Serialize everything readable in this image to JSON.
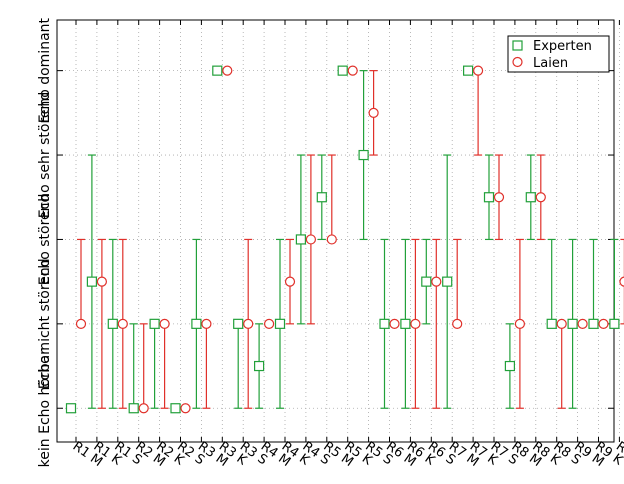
{
  "chart_data": {
    "type": "scatter",
    "categories": [
      "R1 M",
      "R1 K",
      "R1 S",
      "R2 M",
      "R2 K",
      "R2 S",
      "R3 M",
      "R3 K",
      "R3 S",
      "R4 M",
      "R4 K",
      "R4 S",
      "R5 M",
      "R5 K",
      "R5 S",
      "R6 M",
      "R6 K",
      "R6 S",
      "R7 M",
      "R7 K",
      "R7 S",
      "R8 M",
      "R8 K",
      "R8 S",
      "R9 M",
      "R9 K",
      "R9 S"
    ],
    "y_tick_labels": [
      "kein Echo hörbar",
      "Echo nicht störend",
      "Echo störend",
      "Echo sehr störend",
      "Echo dominant"
    ],
    "ylim": [
      0.6,
      5.6
    ],
    "grid": true,
    "legend_position": "top-right",
    "series": [
      {
        "name": "Experten",
        "marker": "square",
        "color": "#22a03a",
        "points": [
          {
            "y": 1.0,
            "low": null,
            "high": null
          },
          {
            "y": 2.5,
            "low": 1.0,
            "high": 4.0
          },
          {
            "y": 2.0,
            "low": 1.0,
            "high": 3.0
          },
          {
            "y": 1.0,
            "low": 1.0,
            "high": 2.0
          },
          {
            "y": 2.0,
            "low": 1.0,
            "high": 2.0
          },
          {
            "y": 1.0,
            "low": 1.0,
            "high": 1.0
          },
          {
            "y": 2.0,
            "low": 1.0,
            "high": 3.0
          },
          {
            "y": 5.0,
            "low": null,
            "high": null
          },
          {
            "y": 2.0,
            "low": 1.0,
            "high": 2.0
          },
          {
            "y": 1.5,
            "low": 1.0,
            "high": 2.0
          },
          {
            "y": 2.0,
            "low": 1.0,
            "high": 3.0
          },
          {
            "y": 3.0,
            "low": 2.0,
            "high": 4.0
          },
          {
            "y": 3.5,
            "low": 3.0,
            "high": 4.0
          },
          {
            "y": 5.0,
            "low": null,
            "high": null
          },
          {
            "y": 4.0,
            "low": 3.0,
            "high": 5.0
          },
          {
            "y": 2.0,
            "low": 1.0,
            "high": 3.0
          },
          {
            "y": 2.0,
            "low": 1.0,
            "high": 3.0
          },
          {
            "y": 2.5,
            "low": 2.0,
            "high": 3.0
          },
          {
            "y": 2.5,
            "low": 1.0,
            "high": 4.0
          },
          {
            "y": 5.0,
            "low": null,
            "high": null
          },
          {
            "y": 3.5,
            "low": 3.0,
            "high": 4.0
          },
          {
            "y": 1.5,
            "low": 1.0,
            "high": 2.0
          },
          {
            "y": 3.5,
            "low": 3.0,
            "high": 4.0
          },
          {
            "y": 2.0,
            "low": 2.0,
            "high": 3.0
          },
          {
            "y": 2.0,
            "low": 1.0,
            "high": 3.0
          },
          {
            "y": 2.0,
            "low": 2.0,
            "high": 3.0
          },
          {
            "y": 2.0,
            "low": 2.0,
            "high": 3.0
          }
        ]
      },
      {
        "name": "Laien",
        "marker": "circle",
        "color": "#e0302a",
        "points": [
          {
            "y": 2.0,
            "low": 2.0,
            "high": 3.0
          },
          {
            "y": 2.5,
            "low": 1.0,
            "high": 3.0
          },
          {
            "y": 2.0,
            "low": 1.0,
            "high": 3.0
          },
          {
            "y": 1.0,
            "low": 1.0,
            "high": 2.0
          },
          {
            "y": 2.0,
            "low": 1.0,
            "high": 2.0
          },
          {
            "y": 1.0,
            "low": 1.0,
            "high": 1.0
          },
          {
            "y": 2.0,
            "low": 1.0,
            "high": 2.0
          },
          {
            "y": 5.0,
            "low": null,
            "high": null
          },
          {
            "y": 2.0,
            "low": 1.0,
            "high": 3.0
          },
          {
            "y": 2.0,
            "low": 2.0,
            "high": 2.0
          },
          {
            "y": 2.5,
            "low": 2.0,
            "high": 3.0
          },
          {
            "y": 3.0,
            "low": 2.0,
            "high": 4.0
          },
          {
            "y": 3.0,
            "low": 3.0,
            "high": 4.0
          },
          {
            "y": 5.0,
            "low": null,
            "high": null
          },
          {
            "y": 4.5,
            "low": 4.0,
            "high": 5.0
          },
          {
            "y": 2.0,
            "low": 2.0,
            "high": 2.0
          },
          {
            "y": 2.0,
            "low": 1.0,
            "high": 3.0
          },
          {
            "y": 2.5,
            "low": 1.0,
            "high": 3.0
          },
          {
            "y": 2.0,
            "low": 2.0,
            "high": 3.0
          },
          {
            "y": 5.0,
            "low": 4.0,
            "high": 5.0
          },
          {
            "y": 3.5,
            "low": 3.0,
            "high": 4.0
          },
          {
            "y": 2.0,
            "low": 1.0,
            "high": 3.0
          },
          {
            "y": 3.5,
            "low": 3.0,
            "high": 4.0
          },
          {
            "y": 2.0,
            "low": 1.0,
            "high": 2.0
          },
          {
            "y": 2.0,
            "low": 2.0,
            "high": 2.0
          },
          {
            "y": 2.0,
            "low": 2.0,
            "high": 2.0
          },
          {
            "y": 2.5,
            "low": 2.0,
            "high": 3.0
          }
        ]
      }
    ]
  }
}
